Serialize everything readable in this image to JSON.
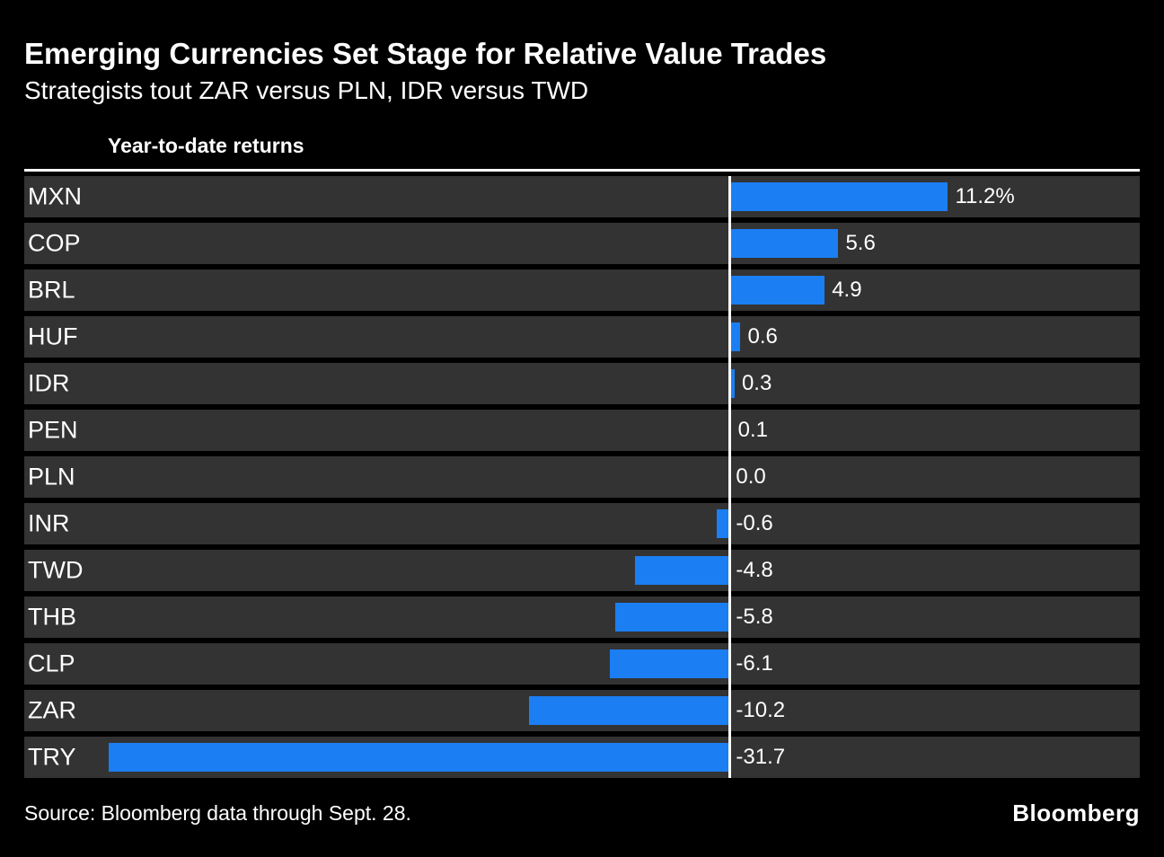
{
  "chart_data": {
    "type": "bar",
    "orientation": "horizontal",
    "title": "Emerging Currencies Set Stage for Relative Value Trades",
    "subtitle": "Strategists tout ZAR versus PLN, IDR versus TWD",
    "series_label": "Year-to-date returns",
    "categories": [
      "MXN",
      "COP",
      "BRL",
      "HUF",
      "IDR",
      "PEN",
      "PLN",
      "INR",
      "TWD",
      "THB",
      "CLP",
      "ZAR",
      "TRY"
    ],
    "values": [
      11.2,
      5.6,
      4.9,
      0.6,
      0.3,
      0.1,
      0.0,
      -0.6,
      -4.8,
      -5.8,
      -6.1,
      -10.2,
      -31.7
    ],
    "value_labels": [
      "11.2%",
      "5.6",
      "4.9",
      "0.6",
      "0.3",
      "0.1",
      "0.0",
      "-0.6",
      "-4.8",
      "-5.8",
      "-6.1",
      "-10.2",
      "-31.7"
    ],
    "xlim": [
      -36,
      21
    ],
    "grid": false,
    "legend_position": "top-left",
    "bar_color": "#1b7ef3",
    "row_stripe_color": "#333333",
    "axis_line_color": "#ffffff",
    "background_color": "#000000",
    "text_color": "#ffffff"
  },
  "footer": {
    "source": "Source: Bloomberg data through Sept. 28.",
    "logo": "Bloomberg"
  }
}
